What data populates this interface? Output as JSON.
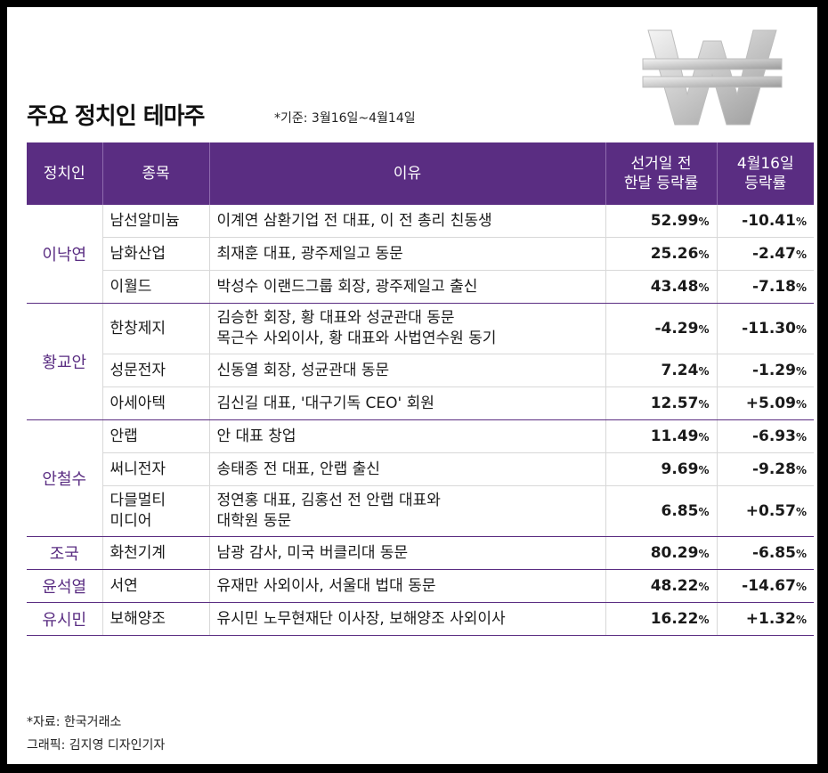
{
  "title": "주요 정치인 테마주",
  "basis": "*기준: 3월16일~4월14일",
  "headers": {
    "politician": "정치인",
    "stock": "종목",
    "reason": "이유",
    "pre_election": "선거일 전\n한달 등락률",
    "apr16": "4월16일\n등락률"
  },
  "groups": [
    {
      "politician": "이낙연",
      "rows": [
        {
          "stock": "남선알미늄",
          "reason": "이계연 삼환기업 전 대표, 이 전 총리 친동생",
          "pre": "52.99",
          "apr16": "-10.41"
        },
        {
          "stock": "남화산업",
          "reason": "최재훈 대표, 광주제일고 동문",
          "pre": "25.26",
          "apr16": "-2.47"
        },
        {
          "stock": "이월드",
          "reason": "박성수 이랜드그룹 회장, 광주제일고 출신",
          "pre": "43.48",
          "apr16": "-7.18"
        }
      ]
    },
    {
      "politician": "황교안",
      "rows": [
        {
          "stock": "한창제지",
          "reason": "김승한 회장, 황 대표와 성균관대 동문\n목근수 사외이사, 황 대표와 사법연수원 동기",
          "pre": "-4.29",
          "apr16": "-11.30",
          "tall": true
        },
        {
          "stock": "성문전자",
          "reason": "신동열 회장, 성균관대 동문",
          "pre": "7.24",
          "apr16": "-1.29"
        },
        {
          "stock": "아세아텍",
          "reason": "김신길 대표, '대구기독 CEO' 회원",
          "pre": "12.57",
          "apr16": "+5.09"
        }
      ]
    },
    {
      "politician": "안철수",
      "rows": [
        {
          "stock": "안랩",
          "reason": "안 대표 창업",
          "pre": "11.49",
          "apr16": "-6.93"
        },
        {
          "stock": "써니전자",
          "reason": "송태종 전 대표, 안랩 출신",
          "pre": "9.69",
          "apr16": "-9.28"
        },
        {
          "stock": "다믈멀티\n미디어",
          "reason": "정연홍 대표, 김홍선 전 안랩 대표와\n대학원 동문",
          "pre": "6.85",
          "apr16": "+0.57",
          "tall": true
        }
      ]
    },
    {
      "politician": "조국",
      "rows": [
        {
          "stock": "화천기계",
          "reason": "남광 감사, 미국 버클리대 동문",
          "pre": "80.29",
          "apr16": "-6.85"
        }
      ]
    },
    {
      "politician": "윤석열",
      "rows": [
        {
          "stock": "서연",
          "reason": "유재만 사외이사, 서울대 법대 동문",
          "pre": "48.22",
          "apr16": "-14.67"
        }
      ]
    },
    {
      "politician": "유시민",
      "rows": [
        {
          "stock": "보해양조",
          "reason": "유시민 노무현재단 이사장, 보해양조 사외이사",
          "pre": "16.22",
          "apr16": "+1.32"
        }
      ]
    }
  ],
  "pct_symbol": "%",
  "source": "*자료: 한국거래소",
  "credit": "그래픽: 김지영 디자인기자",
  "colors": {
    "accent": "#5a2d82",
    "header_text": "#ffffff"
  },
  "decoration": {
    "won_icon": "won-sign-3d-icon"
  }
}
